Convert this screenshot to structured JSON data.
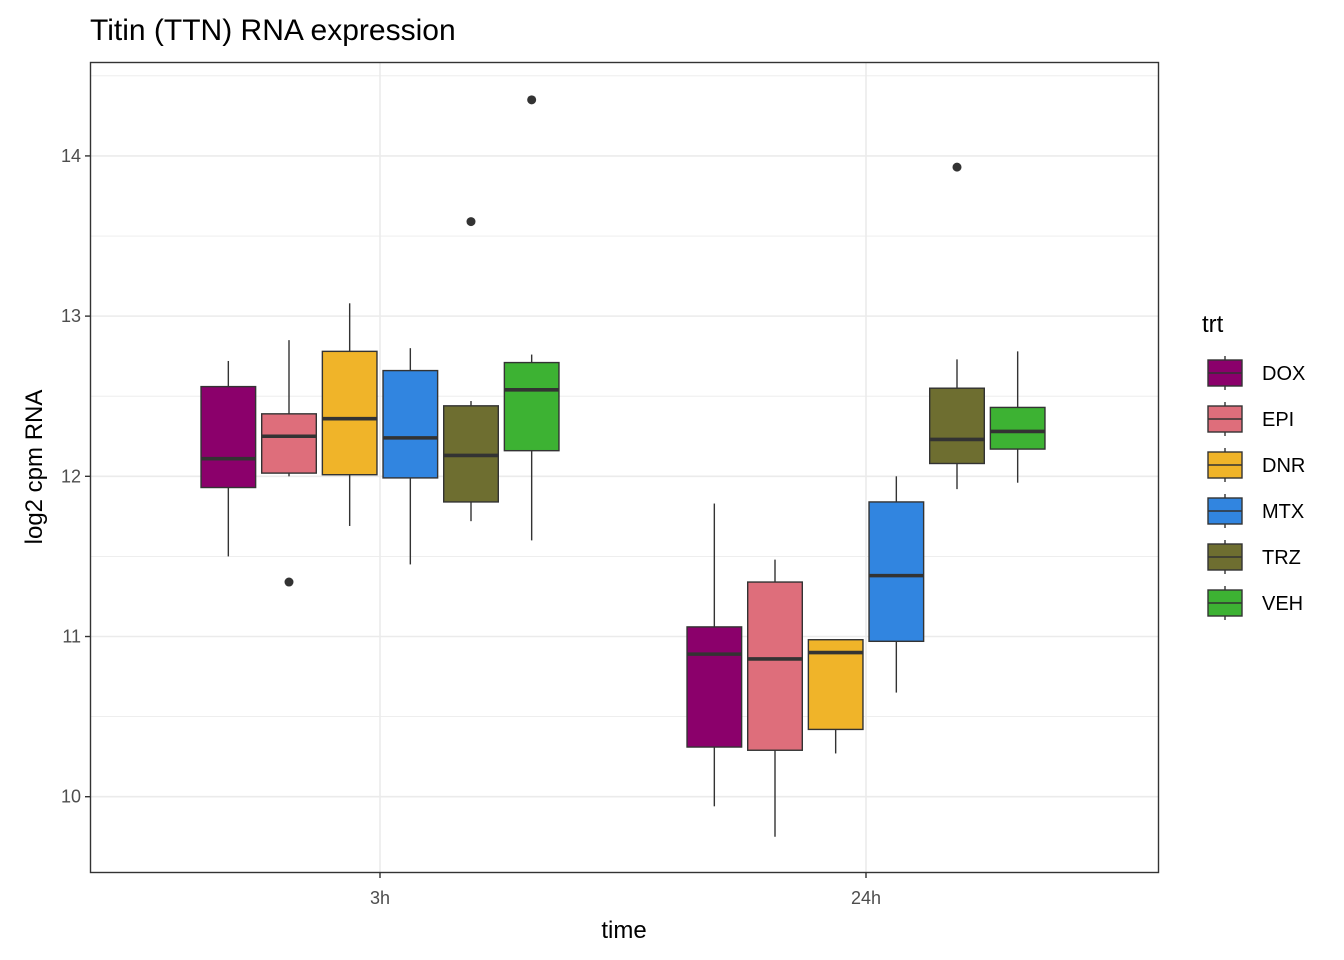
{
  "chart_data": {
    "type": "boxplot",
    "title": "Titin (TTN) RNA expression",
    "xlabel": "time",
    "ylabel": "log2 cpm RNA",
    "ylim": [
      9.53,
      14.58
    ],
    "yticks": [
      10,
      11,
      12,
      13,
      14
    ],
    "categories": [
      "3h",
      "24h"
    ],
    "legend_title": "trt",
    "legend_position": "right",
    "grid": true,
    "series": [
      {
        "name": "DOX",
        "color": "#8B006B",
        "boxes": [
          {
            "category": "3h",
            "lower_whisker": 11.5,
            "q1": 11.93,
            "median": 12.11,
            "q3": 12.56,
            "upper_whisker": 12.72,
            "outliers": []
          },
          {
            "category": "24h",
            "lower_whisker": 9.94,
            "q1": 10.31,
            "median": 10.89,
            "q3": 11.06,
            "upper_whisker": 11.83,
            "outliers": []
          }
        ]
      },
      {
        "name": "EPI",
        "color": "#DE6E7B",
        "boxes": [
          {
            "category": "3h",
            "lower_whisker": 12.0,
            "q1": 12.02,
            "median": 12.25,
            "q3": 12.39,
            "upper_whisker": 12.85,
            "outliers": [
              11.34
            ]
          },
          {
            "category": "24h",
            "lower_whisker": 9.75,
            "q1": 10.29,
            "median": 10.86,
            "q3": 11.34,
            "upper_whisker": 11.48,
            "outliers": []
          }
        ]
      },
      {
        "name": "DNR",
        "color": "#F0B429",
        "boxes": [
          {
            "category": "3h",
            "lower_whisker": 11.69,
            "q1": 12.01,
            "median": 12.36,
            "q3": 12.78,
            "upper_whisker": 13.08,
            "outliers": []
          },
          {
            "category": "24h",
            "lower_whisker": 10.27,
            "q1": 10.42,
            "median": 10.9,
            "q3": 10.98,
            "upper_whisker": 10.98,
            "outliers": []
          }
        ]
      },
      {
        "name": "MTX",
        "color": "#3185E0",
        "boxes": [
          {
            "category": "3h",
            "lower_whisker": 11.45,
            "q1": 11.99,
            "median": 12.24,
            "q3": 12.66,
            "upper_whisker": 12.8,
            "outliers": []
          },
          {
            "category": "24h",
            "lower_whisker": 10.65,
            "q1": 10.97,
            "median": 11.38,
            "q3": 11.84,
            "upper_whisker": 12.0,
            "outliers": []
          }
        ]
      },
      {
        "name": "TRZ",
        "color": "#6E6E30",
        "boxes": [
          {
            "category": "3h",
            "lower_whisker": 11.72,
            "q1": 11.84,
            "median": 12.13,
            "q3": 12.44,
            "upper_whisker": 12.47,
            "outliers": [
              13.59
            ]
          },
          {
            "category": "24h",
            "lower_whisker": 11.92,
            "q1": 12.08,
            "median": 12.23,
            "q3": 12.55,
            "upper_whisker": 12.73,
            "outliers": [
              13.93
            ]
          }
        ]
      },
      {
        "name": "VEH",
        "color": "#3DB233",
        "boxes": [
          {
            "category": "3h",
            "lower_whisker": 11.6,
            "q1": 12.16,
            "median": 12.54,
            "q3": 12.71,
            "upper_whisker": 12.76,
            "outliers": [
              14.35
            ]
          },
          {
            "category": "24h",
            "lower_whisker": 11.96,
            "q1": 12.17,
            "median": 12.28,
            "q3": 12.43,
            "upper_whisker": 12.78,
            "outliers": []
          }
        ]
      }
    ]
  },
  "colors": {
    "panel_border": "#333333",
    "grid": "#ebebeb",
    "box_line": "#333333"
  }
}
